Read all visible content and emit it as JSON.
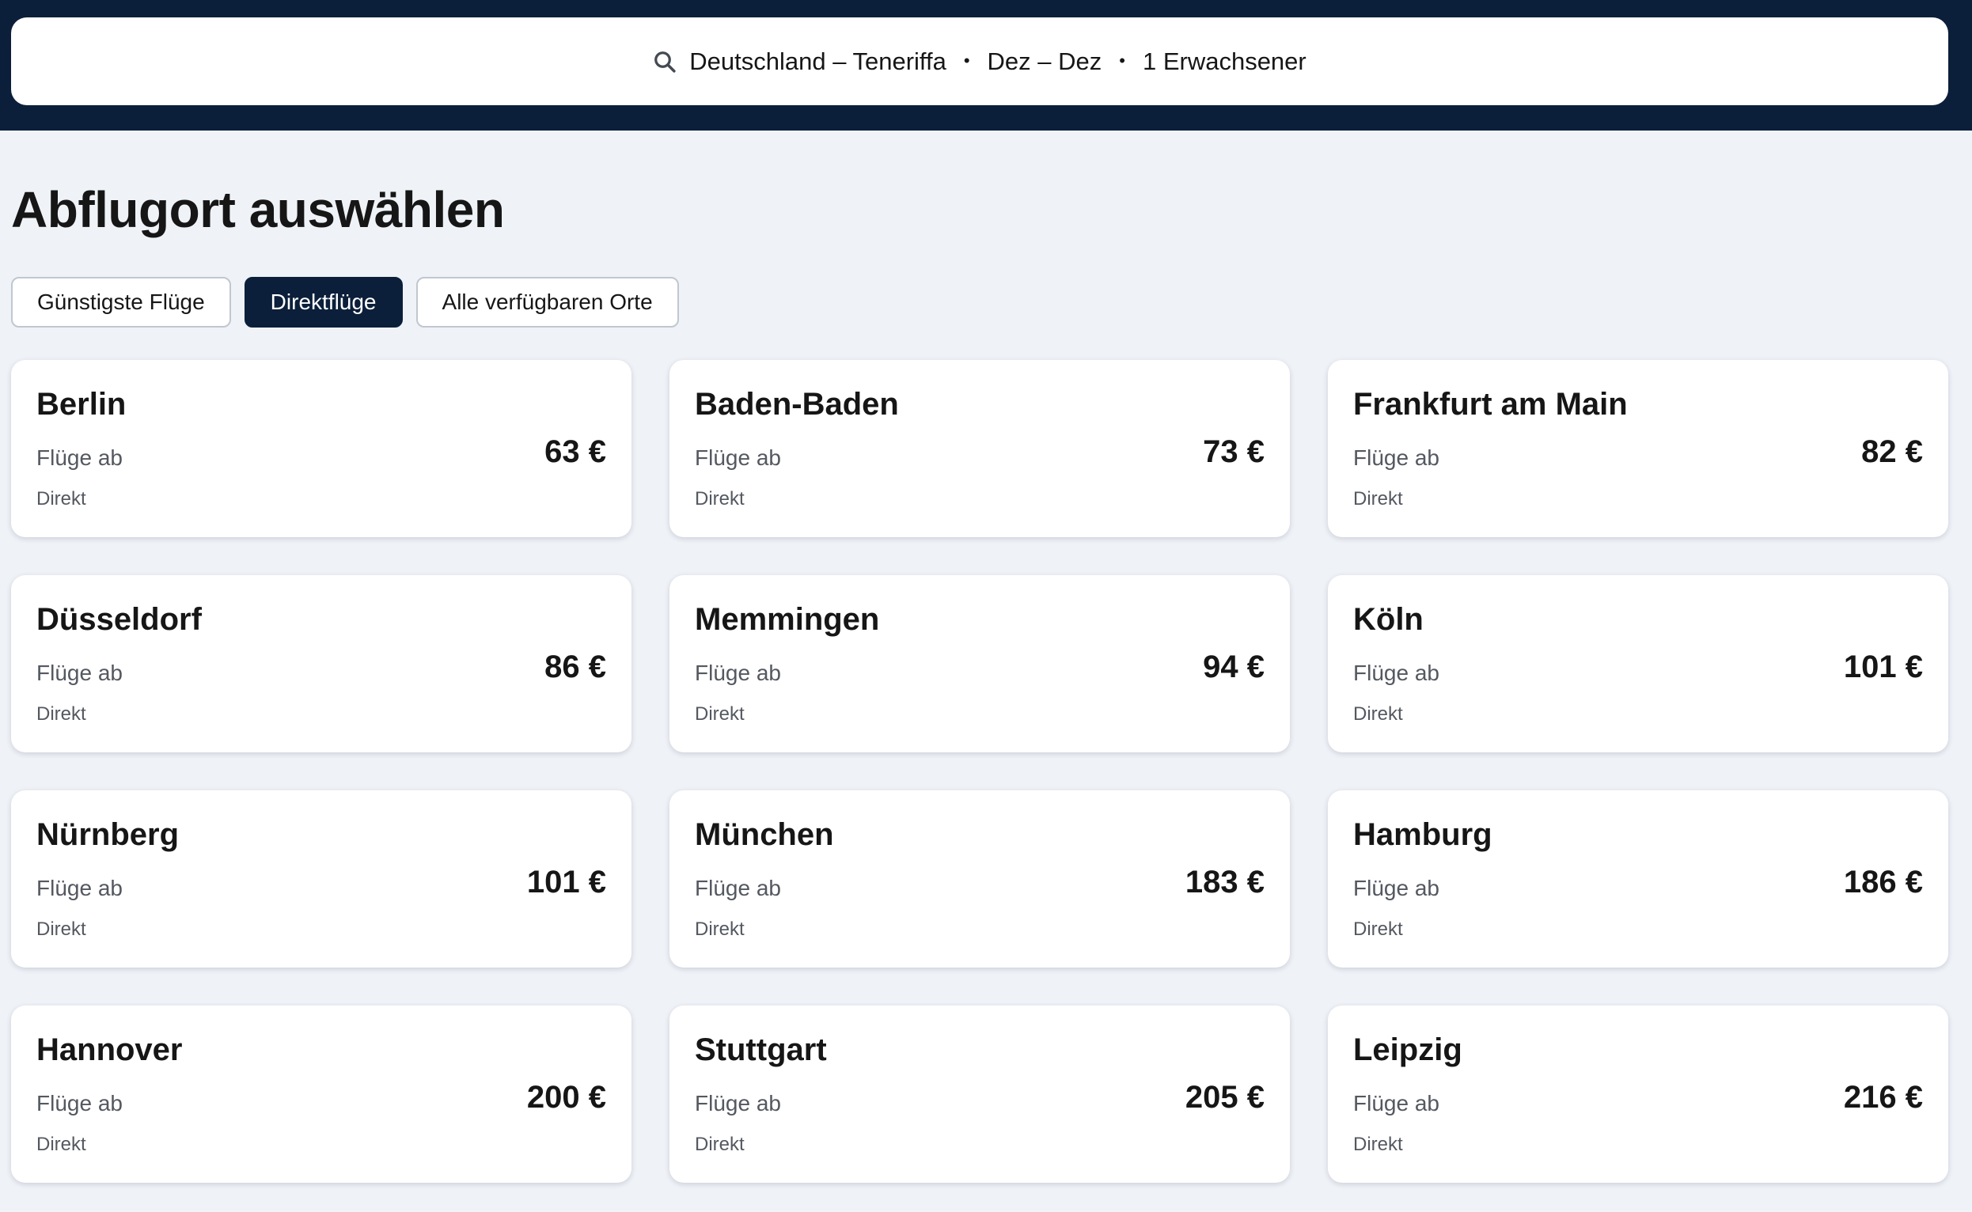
{
  "search": {
    "route": "Deutschland – Teneriffa",
    "dates": "Dez – Dez",
    "travellers": "1 Erwachsener",
    "separator": "•"
  },
  "page_title": "Abflugort auswählen",
  "tabs": [
    {
      "label": "Günstigste Flüge",
      "active": false
    },
    {
      "label": "Direktflüge",
      "active": true
    },
    {
      "label": "Alle verfügbaren Orte",
      "active": false
    }
  ],
  "results": [
    {
      "city": "Berlin",
      "from_label": "Flüge ab",
      "price": "63 €",
      "stops": "Direkt"
    },
    {
      "city": "Baden-Baden",
      "from_label": "Flüge ab",
      "price": "73 €",
      "stops": "Direkt"
    },
    {
      "city": "Frankfurt am Main",
      "from_label": "Flüge ab",
      "price": "82 €",
      "stops": "Direkt"
    },
    {
      "city": "Düsseldorf",
      "from_label": "Flüge ab",
      "price": "86 €",
      "stops": "Direkt"
    },
    {
      "city": "Memmingen",
      "from_label": "Flüge ab",
      "price": "94 €",
      "stops": "Direkt"
    },
    {
      "city": "Köln",
      "from_label": "Flüge ab",
      "price": "101 €",
      "stops": "Direkt"
    },
    {
      "city": "Nürnberg",
      "from_label": "Flüge ab",
      "price": "101 €",
      "stops": "Direkt"
    },
    {
      "city": "München",
      "from_label": "Flüge ab",
      "price": "183 €",
      "stops": "Direkt"
    },
    {
      "city": "Hamburg",
      "from_label": "Flüge ab",
      "price": "186 €",
      "stops": "Direkt"
    },
    {
      "city": "Hannover",
      "from_label": "Flüge ab",
      "price": "200 €",
      "stops": "Direkt"
    },
    {
      "city": "Stuttgart",
      "from_label": "Flüge ab",
      "price": "205 €",
      "stops": "Direkt"
    },
    {
      "city": "Leipzig",
      "from_label": "Flüge ab",
      "price": "216 €",
      "stops": "Direkt"
    }
  ],
  "colors": {
    "header_bg": "#0b1f3a",
    "page_bg": "#eff2f7",
    "active_tab_bg": "#0b1f3a",
    "card_bg": "#ffffff"
  }
}
